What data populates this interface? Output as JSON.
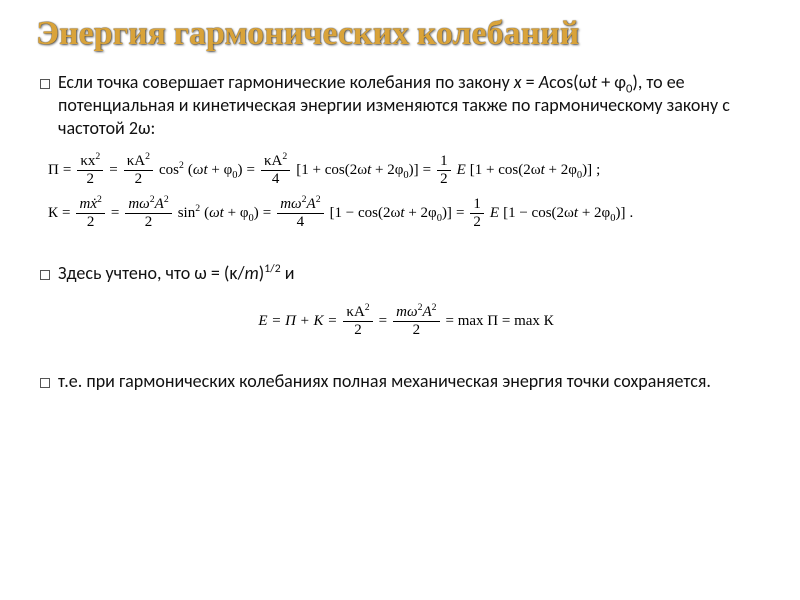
{
  "colors": {
    "title": "#d9a33a",
    "text": "#111111",
    "background": "#ffffff",
    "bullet_border": "#555555"
  },
  "typography": {
    "title_font": "Cambria",
    "title_size_pt": 34,
    "title_weight": 700,
    "body_font": "Calibri",
    "body_size_pt": 18,
    "eq_font": "Times New Roman",
    "eq_size_pt": 15
  },
  "title": "Энергия гармонических колебаний",
  "bullets": {
    "b1_pre": "Если точка совершает гармонические колебания по закону       ",
    "b1_eq_x": "x",
    "b1_mid1": " = ",
    "b1_eq_A": "A",
    "b1_mid2": "cos(ω",
    "b1_eq_t": "t",
    "b1_mid3": " + φ",
    "b1_sub0": "0",
    "b1_post": "), то ее потенциальная и кинетическая энергии изменяются также по гармоническому закону с частотой 2ω:",
    "b2_pre": "Здесь учтено, что ω = (κ/",
    "b2_m": "m",
    "b2_mid": ")",
    "b2_exp": "1/2",
    "b2_post": " и",
    "b3": "т.е. при гармонических колебаниях полная механическая энергия точки сохраняется."
  },
  "eq": {
    "Pi": "П",
    "K": "К",
    "eq": " = ",
    "kx2": "κx",
    "two": "2",
    "kA2": "κA",
    "four": "4",
    "cos": "cos",
    "sin": "sin",
    "sq": "2",
    "lpar": "(",
    "rpar": ")",
    "omega_t": "ωt",
    "plus": " + ",
    "minus": " − ",
    "phi0": "φ",
    "zero": "0",
    "one_plus": "[1 + cos(2ω",
    "one_minus": "[1 − cos(2ω",
    "t": "t",
    "tail": " + 2φ",
    "tail2": ")]",
    "half_num": "1",
    "half_den": "2",
    "E": "E",
    "semicolon": ";",
    "period": ".",
    "mxdot2": "mẋ",
    "mw2A2": "mω",
    "A": "A",
    "E_line_pre": "E = П + К = ",
    "E_line_mid": " = ",
    "max": " = max П = max К"
  }
}
